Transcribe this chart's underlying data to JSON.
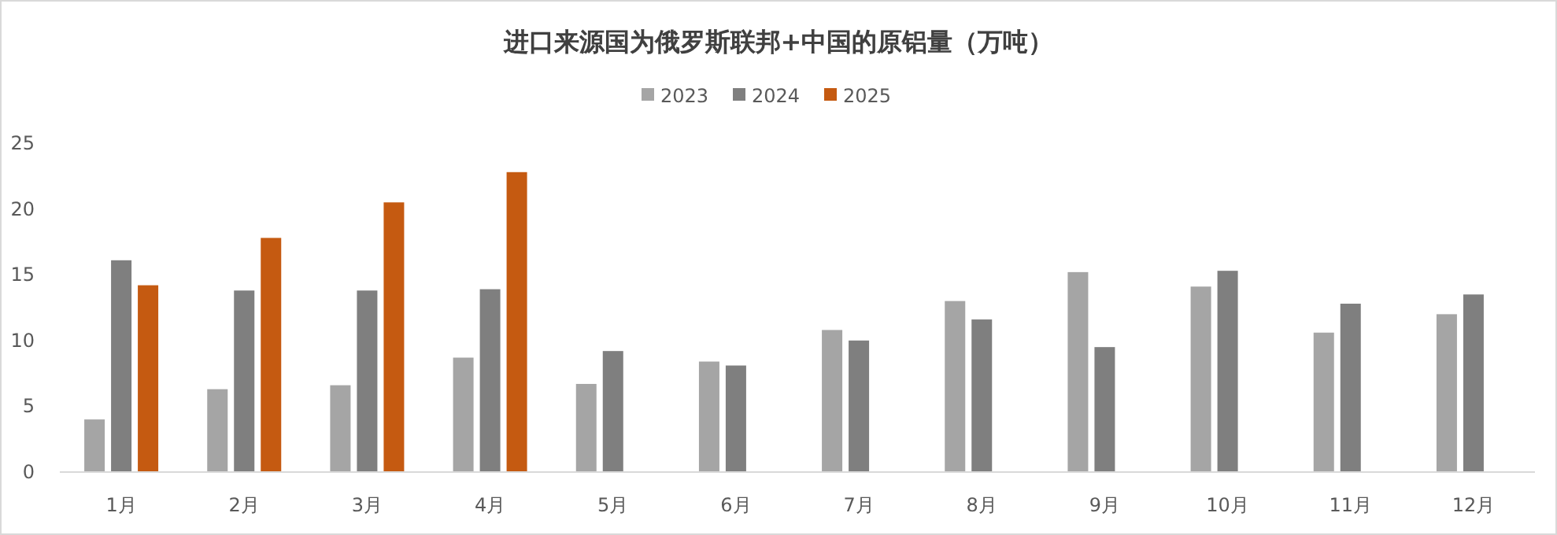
{
  "chart_data": {
    "type": "bar",
    "title": "进口来源国为俄罗斯联邦+中国的原铝量（万吨）",
    "categories": [
      "1月",
      "2月",
      "3月",
      "4月",
      "5月",
      "6月",
      "7月",
      "8月",
      "9月",
      "10月",
      "11月",
      "12月"
    ],
    "series": [
      {
        "name": "2023",
        "color": "#a5a5a5",
        "values": [
          4.0,
          6.3,
          6.6,
          8.7,
          6.7,
          8.4,
          10.8,
          13.0,
          15.2,
          14.1,
          10.6,
          12.0
        ]
      },
      {
        "name": "2024",
        "color": "#7f7f7f",
        "values": [
          16.1,
          13.8,
          13.8,
          13.9,
          9.2,
          8.1,
          10.0,
          11.6,
          9.5,
          15.3,
          12.8,
          13.5
        ]
      },
      {
        "name": "2025",
        "color": "#c55a11",
        "values": [
          14.2,
          17.8,
          20.5,
          22.8,
          null,
          null,
          null,
          null,
          null,
          null,
          null,
          null
        ]
      }
    ],
    "ylim": [
      0,
      25
    ],
    "yticks": [
      0,
      5,
      10,
      15,
      20,
      25
    ],
    "grid": false,
    "legend": "top"
  }
}
